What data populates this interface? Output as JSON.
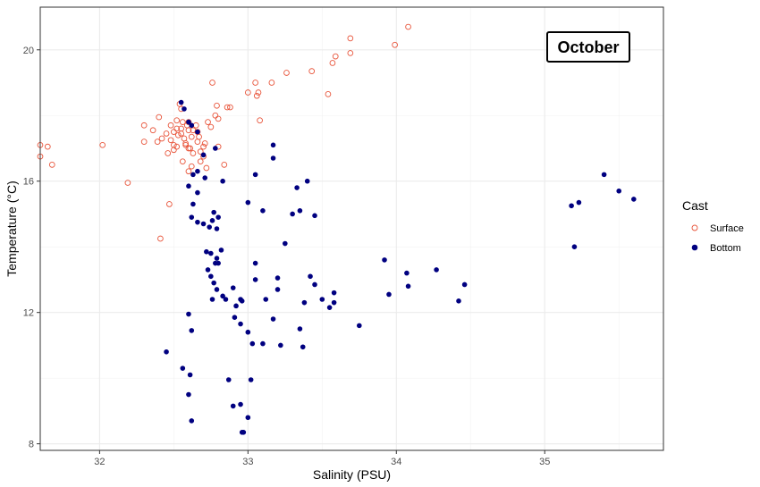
{
  "chart_data": {
    "type": "scatter",
    "xlabel": "Salinity (PSU)",
    "ylabel": "Temperature (°C)",
    "xlim": [
      31.6,
      35.8
    ],
    "ylim": [
      7.8,
      21.3
    ],
    "x_ticks": [
      32,
      33,
      34,
      35
    ],
    "y_ticks": [
      8,
      12,
      16,
      20
    ],
    "grid": true,
    "annotation": "October",
    "legend": {
      "title": "Cast",
      "position": "right"
    },
    "series": [
      {
        "name": "Surface",
        "marker": "open-circle",
        "color": "#e8553b",
        "points": [
          [
            31.6,
            17.1
          ],
          [
            31.65,
            17.05
          ],
          [
            31.6,
            16.75
          ],
          [
            31.68,
            16.5
          ],
          [
            32.02,
            17.1
          ],
          [
            32.19,
            15.95
          ],
          [
            32.3,
            17.7
          ],
          [
            32.3,
            17.2
          ],
          [
            32.36,
            17.55
          ],
          [
            32.4,
            17.95
          ],
          [
            32.39,
            17.2
          ],
          [
            32.42,
            17.3
          ],
          [
            32.45,
            17.45
          ],
          [
            32.48,
            17.7
          ],
          [
            32.5,
            17.5
          ],
          [
            32.48,
            17.25
          ],
          [
            32.5,
            17.1
          ],
          [
            32.52,
            17.6
          ],
          [
            32.53,
            17.4
          ],
          [
            32.54,
            18.35
          ],
          [
            32.55,
            18.2
          ],
          [
            32.56,
            17.8
          ],
          [
            32.55,
            17.6
          ],
          [
            32.57,
            17.3
          ],
          [
            32.58,
            17.1
          ],
          [
            32.6,
            17.8
          ],
          [
            32.6,
            17.55
          ],
          [
            32.62,
            17.35
          ],
          [
            32.6,
            17.0
          ],
          [
            32.63,
            16.85
          ],
          [
            32.65,
            17.7
          ],
          [
            32.66,
            17.5
          ],
          [
            32.66,
            17.2
          ],
          [
            32.68,
            16.9
          ],
          [
            32.68,
            16.6
          ],
          [
            32.7,
            17.05
          ],
          [
            32.72,
            16.4
          ],
          [
            32.73,
            17.8
          ],
          [
            32.75,
            17.65
          ],
          [
            32.78,
            18.0
          ],
          [
            32.79,
            18.3
          ],
          [
            32.8,
            17.9
          ],
          [
            32.76,
            19.0
          ],
          [
            32.86,
            18.25
          ],
          [
            32.88,
            18.25
          ],
          [
            32.8,
            17.05
          ],
          [
            32.84,
            16.5
          ],
          [
            32.47,
            15.3
          ],
          [
            32.41,
            14.25
          ],
          [
            32.52,
            17.05
          ],
          [
            32.5,
            16.95
          ],
          [
            32.46,
            16.85
          ],
          [
            32.56,
            16.6
          ],
          [
            32.6,
            16.3
          ],
          [
            32.62,
            16.45
          ],
          [
            32.7,
            16.75
          ],
          [
            32.58,
            17.15
          ],
          [
            32.63,
            17.55
          ],
          [
            32.67,
            17.35
          ],
          [
            32.71,
            17.15
          ],
          [
            32.55,
            17.45
          ],
          [
            32.59,
            17.7
          ],
          [
            32.61,
            17.0
          ],
          [
            32.52,
            17.85
          ],
          [
            33.0,
            18.7
          ],
          [
            33.05,
            19.0
          ],
          [
            33.06,
            18.6
          ],
          [
            33.07,
            18.7
          ],
          [
            33.08,
            17.85
          ],
          [
            33.16,
            19.0
          ],
          [
            33.26,
            19.3
          ],
          [
            33.43,
            19.35
          ],
          [
            33.54,
            18.65
          ],
          [
            33.57,
            19.6
          ],
          [
            33.59,
            19.8
          ],
          [
            33.69,
            20.35
          ],
          [
            33.69,
            19.9
          ],
          [
            33.99,
            20.15
          ],
          [
            34.08,
            20.7
          ]
        ]
      },
      {
        "name": "Bottom",
        "marker": "filled-circle",
        "color": "#000080",
        "points": [
          [
            32.55,
            18.4
          ],
          [
            32.57,
            18.2
          ],
          [
            32.6,
            17.8
          ],
          [
            32.62,
            17.7
          ],
          [
            32.66,
            17.5
          ],
          [
            32.7,
            16.8
          ],
          [
            32.63,
            16.2
          ],
          [
            32.66,
            16.3
          ],
          [
            32.71,
            16.1
          ],
          [
            32.78,
            17.0
          ],
          [
            32.83,
            16.0
          ],
          [
            32.6,
            15.85
          ],
          [
            32.66,
            15.65
          ],
          [
            32.63,
            15.3
          ],
          [
            32.62,
            14.9
          ],
          [
            32.66,
            14.75
          ],
          [
            32.7,
            14.7
          ],
          [
            32.74,
            14.6
          ],
          [
            32.79,
            14.55
          ],
          [
            32.77,
            15.05
          ],
          [
            32.8,
            14.9
          ],
          [
            32.76,
            14.8
          ],
          [
            32.72,
            13.85
          ],
          [
            32.75,
            13.8
          ],
          [
            32.79,
            13.65
          ],
          [
            32.82,
            13.9
          ],
          [
            32.78,
            13.5
          ],
          [
            32.8,
            13.5
          ],
          [
            32.73,
            13.3
          ],
          [
            32.75,
            13.1
          ],
          [
            32.77,
            12.9
          ],
          [
            32.79,
            12.7
          ],
          [
            32.83,
            12.5
          ],
          [
            32.85,
            12.4
          ],
          [
            32.76,
            12.4
          ],
          [
            32.9,
            12.75
          ],
          [
            32.92,
            12.2
          ],
          [
            32.95,
            12.4
          ],
          [
            32.96,
            12.35
          ],
          [
            32.91,
            11.85
          ],
          [
            32.95,
            11.65
          ],
          [
            33.0,
            11.4
          ],
          [
            33.03,
            11.05
          ],
          [
            33.1,
            11.05
          ],
          [
            33.0,
            15.35
          ],
          [
            33.05,
            16.2
          ],
          [
            33.1,
            15.1
          ],
          [
            33.05,
            13.5
          ],
          [
            33.05,
            13.0
          ],
          [
            33.12,
            12.4
          ],
          [
            33.17,
            17.1
          ],
          [
            33.17,
            16.7
          ],
          [
            33.2,
            13.05
          ],
          [
            33.2,
            12.7
          ],
          [
            33.25,
            14.1
          ],
          [
            33.3,
            15.0
          ],
          [
            33.33,
            15.8
          ],
          [
            33.35,
            15.1
          ],
          [
            33.38,
            12.3
          ],
          [
            33.4,
            16.0
          ],
          [
            33.42,
            13.1
          ],
          [
            33.45,
            14.95
          ],
          [
            33.45,
            12.85
          ],
          [
            33.5,
            12.4
          ],
          [
            33.55,
            12.15
          ],
          [
            33.58,
            12.6
          ],
          [
            33.58,
            12.3
          ],
          [
            33.22,
            11.0
          ],
          [
            33.35,
            11.5
          ],
          [
            33.37,
            10.95
          ],
          [
            33.17,
            11.8
          ],
          [
            33.75,
            11.6
          ],
          [
            33.92,
            13.6
          ],
          [
            33.95,
            12.55
          ],
          [
            34.07,
            13.2
          ],
          [
            34.08,
            12.8
          ],
          [
            34.27,
            13.3
          ],
          [
            34.42,
            12.35
          ],
          [
            34.46,
            12.85
          ],
          [
            32.45,
            10.8
          ],
          [
            32.56,
            10.3
          ],
          [
            32.61,
            10.1
          ],
          [
            32.6,
            9.5
          ],
          [
            32.62,
            8.7
          ],
          [
            32.6,
            11.95
          ],
          [
            32.62,
            11.45
          ],
          [
            32.87,
            9.95
          ],
          [
            32.9,
            9.15
          ],
          [
            32.95,
            9.2
          ],
          [
            33.0,
            8.8
          ],
          [
            32.96,
            8.35
          ],
          [
            32.97,
            8.35
          ],
          [
            33.02,
            9.95
          ],
          [
            35.18,
            15.25
          ],
          [
            35.2,
            14.0
          ],
          [
            35.23,
            15.35
          ],
          [
            35.4,
            16.2
          ],
          [
            35.5,
            15.7
          ],
          [
            35.6,
            15.45
          ]
        ]
      }
    ]
  }
}
